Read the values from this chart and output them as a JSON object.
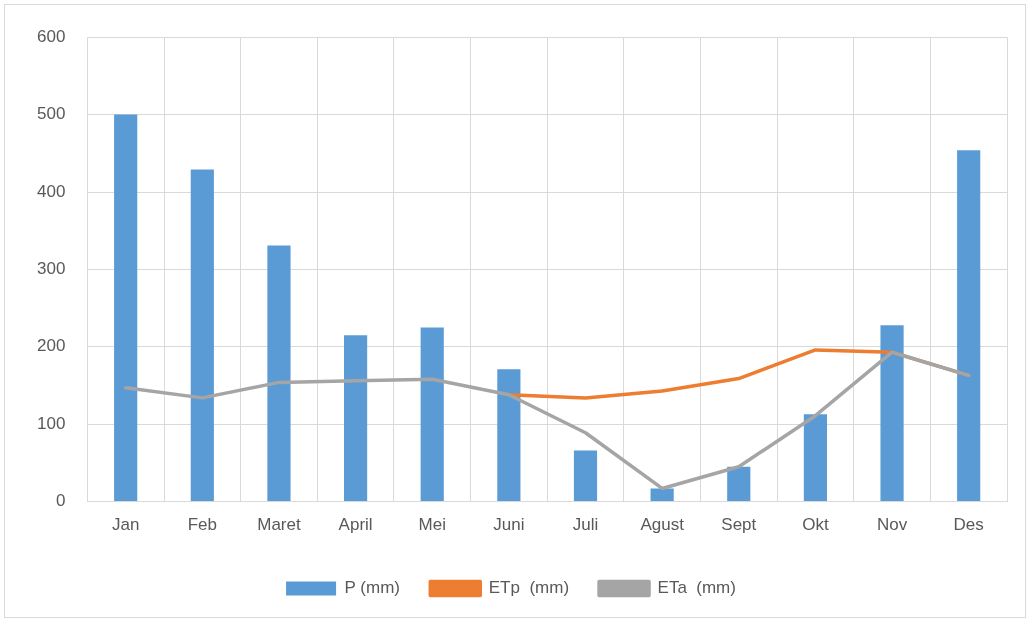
{
  "chart_data": {
    "type": "bar",
    "categories": [
      "Jan",
      "Feb",
      "Maret",
      "April",
      "Mei",
      "Juni",
      "Juli",
      "Agust",
      "Sept",
      "Okt",
      "Nov",
      "Des"
    ],
    "series": [
      {
        "name": "P (mm)",
        "color": "#5b9bd5",
        "values": [
          500,
          429,
          331,
          215,
          225,
          171,
          66,
          17,
          45,
          113,
          228,
          454
        ]
      },
      {
        "name": "ETp  (mm)",
        "type": "line",
        "color": "#ed7d31",
        "values": [
          null,
          null,
          null,
          null,
          null,
          138,
          134,
          143,
          159,
          196,
          193,
          163
        ]
      },
      {
        "name": "ETa  (mm)",
        "type": "line",
        "color": "#a5a5a5",
        "values": [
          147,
          134,
          154,
          156,
          158,
          138,
          89,
          17,
          45,
          111,
          193,
          163
        ]
      }
    ],
    "ylim": [
      0,
      600
    ],
    "yticks": [
      0,
      100,
      200,
      300,
      400,
      500,
      600
    ],
    "grid": true,
    "legend": "bottom",
    "marker": "none",
    "line_style": "solid"
  }
}
